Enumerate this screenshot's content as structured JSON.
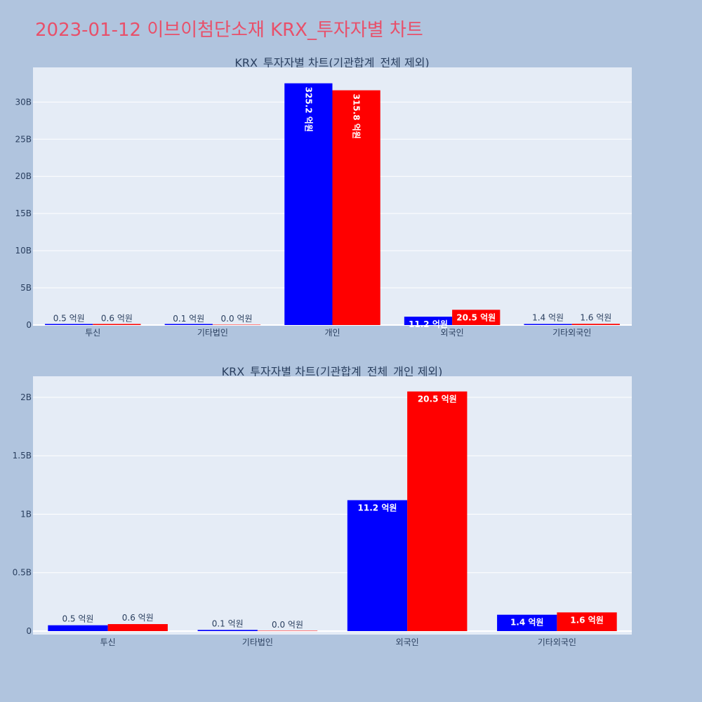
{
  "page_title": "2023-01-12 이브이첨단소재 KRX_투자자별 차트",
  "colors": {
    "series_a": "#0000ff",
    "series_b": "#ff0000",
    "plot_bg": "#e5ecf6",
    "page_bg": "#b0c4de",
    "title": "#e8506a"
  },
  "chart_data": [
    {
      "type": "bar",
      "title": "KRX_투자자별 차트(기관합계_전체 제외)",
      "categories": [
        "투신",
        "기타법인",
        "개인",
        "외국인",
        "기타외국인"
      ],
      "series": [
        {
          "values": [
            50000000,
            10000000,
            32520000000,
            1120000000,
            140000000
          ],
          "labels": [
            "0.5 억원",
            "0.1 억원",
            "325.2 억원",
            "11.2 억원",
            "1.4 억원"
          ]
        },
        {
          "values": [
            60000000,
            0,
            31580000000,
            2050000000,
            160000000
          ],
          "labels": [
            "0.6 억원",
            "0.0 억원",
            "315.8 억원",
            "20.5 억원",
            "1.6 억원"
          ]
        }
      ],
      "ylim": [
        0,
        34660000000
      ],
      "yticks": [
        0,
        5000000000,
        10000000000,
        15000000000,
        20000000000,
        25000000000,
        30000000000
      ],
      "yticklabels": [
        "0",
        "5B",
        "10B",
        "15B",
        "20B",
        "25B",
        "30B"
      ],
      "grid": true
    },
    {
      "type": "bar",
      "title": "KRX_투자자별 차트(기관합계_전체_개인 제외)",
      "categories": [
        "투신",
        "기타법인",
        "외국인",
        "기타외국인"
      ],
      "series": [
        {
          "values": [
            50000000,
            10000000,
            1120000000,
            140000000
          ],
          "labels": [
            "0.5 억원",
            "0.1 억원",
            "11.2 억원",
            "1.4 억원"
          ]
        },
        {
          "values": [
            60000000,
            0,
            2050000000,
            160000000
          ],
          "labels": [
            "0.6 억원",
            "0.0 억원",
            "20.5 억원",
            "1.6 억원"
          ]
        }
      ],
      "ylim": [
        -30000000,
        2180000000
      ],
      "yticks": [
        0,
        500000000,
        1000000000,
        1500000000,
        2000000000
      ],
      "yticklabels": [
        "0",
        "0.5B",
        "1B",
        "1.5B",
        "2B"
      ],
      "grid": true
    }
  ]
}
